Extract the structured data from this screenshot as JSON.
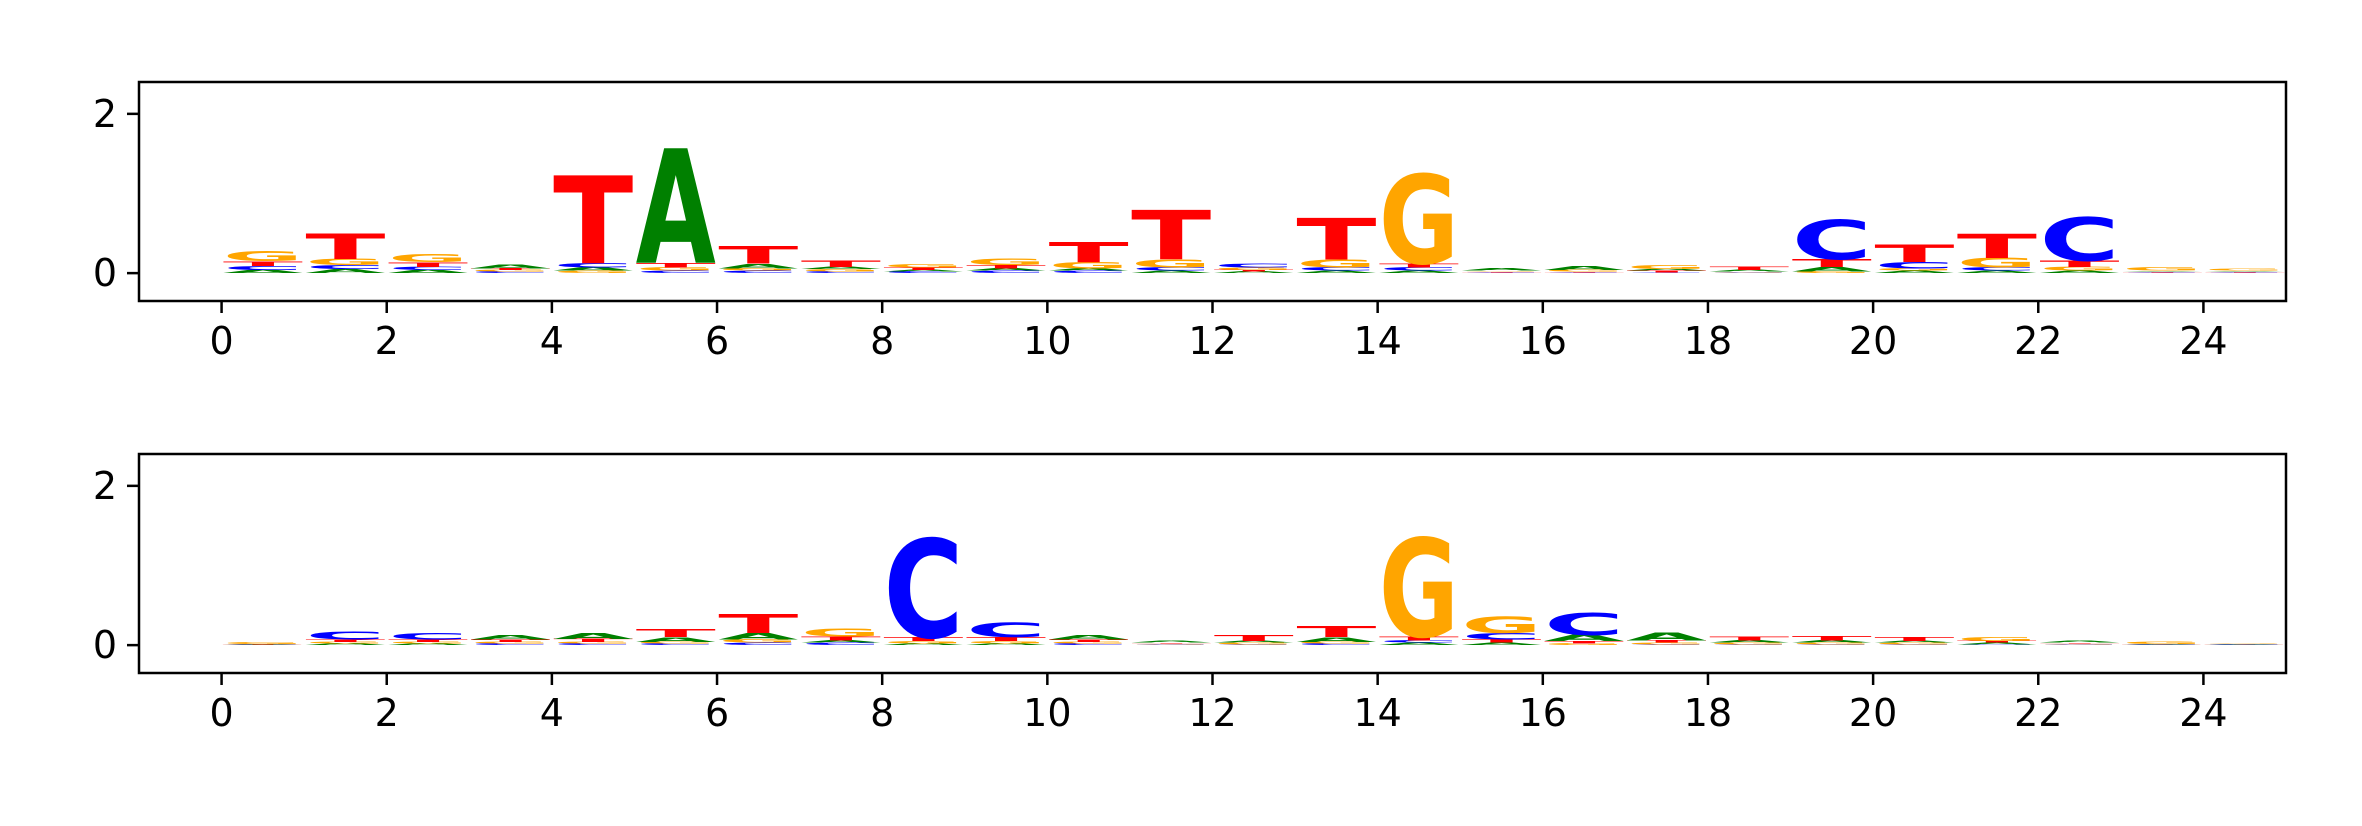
{
  "colors": {
    "A": "#008000",
    "C": "#0000ff",
    "G": "#ffa500",
    "T": "#ff0000",
    "axis": "#000000"
  },
  "chart_data": [
    {
      "type": "sequence-logo",
      "title": "",
      "xlabel": "",
      "ylabel": "",
      "xlim": [
        -1,
        25
      ],
      "ylim": [
        -0.35,
        2.4
      ],
      "xticks": [
        0,
        2,
        4,
        6,
        8,
        10,
        12,
        14,
        16,
        18,
        20,
        22,
        24
      ],
      "yticks": [
        0,
        2
      ],
      "letters": [
        {
          "pos": 0,
          "stack": [
            [
              "A",
              0.04
            ],
            [
              "C",
              0.05
            ],
            [
              "T",
              0.06
            ],
            [
              "G",
              0.12
            ]
          ]
        },
        {
          "pos": 1,
          "stack": [
            [
              "A",
              0.05
            ],
            [
              "C",
              0.05
            ],
            [
              "G",
              0.08
            ],
            [
              "T",
              0.32
            ]
          ]
        },
        {
          "pos": 2,
          "stack": [
            [
              "A",
              0.04
            ],
            [
              "C",
              0.04
            ],
            [
              "T",
              0.06
            ],
            [
              "G",
              0.1
            ]
          ]
        },
        {
          "pos": 3,
          "stack": [
            [
              "C",
              0.02
            ],
            [
              "G",
              0.02
            ],
            [
              "T",
              0.02
            ],
            [
              "A",
              0.05
            ]
          ]
        },
        {
          "pos": 4,
          "stack": [
            [
              "G",
              0.03
            ],
            [
              "A",
              0.04
            ],
            [
              "C",
              0.06
            ],
            [
              "T",
              1.1
            ]
          ]
        },
        {
          "pos": 5,
          "stack": [
            [
              "C",
              0.03
            ],
            [
              "G",
              0.04
            ],
            [
              "T",
              0.06
            ],
            [
              "A",
              1.44
            ]
          ]
        },
        {
          "pos": 6,
          "stack": [
            [
              "C",
              0.03
            ],
            [
              "G",
              0.03
            ],
            [
              "A",
              0.06
            ],
            [
              "T",
              0.22
            ]
          ]
        },
        {
          "pos": 7,
          "stack": [
            [
              "C",
              0.02
            ],
            [
              "G",
              0.03
            ],
            [
              "A",
              0.03
            ],
            [
              "T",
              0.08
            ]
          ]
        },
        {
          "pos": 8,
          "stack": [
            [
              "C",
              0.02
            ],
            [
              "A",
              0.02
            ],
            [
              "T",
              0.03
            ],
            [
              "G",
              0.04
            ]
          ]
        },
        {
          "pos": 9,
          "stack": [
            [
              "C",
              0.03
            ],
            [
              "A",
              0.03
            ],
            [
              "T",
              0.04
            ],
            [
              "G",
              0.08
            ]
          ]
        },
        {
          "pos": 10,
          "stack": [
            [
              "C",
              0.03
            ],
            [
              "A",
              0.03
            ],
            [
              "G",
              0.08
            ],
            [
              "T",
              0.25
            ]
          ]
        },
        {
          "pos": 11,
          "stack": [
            [
              "A",
              0.03
            ],
            [
              "C",
              0.04
            ],
            [
              "G",
              0.1
            ],
            [
              "T",
              0.62
            ]
          ]
        },
        {
          "pos": 12,
          "stack": [
            [
              "A",
              0.02
            ],
            [
              "T",
              0.02
            ],
            [
              "G",
              0.03
            ],
            [
              "C",
              0.05
            ]
          ]
        },
        {
          "pos": 13,
          "stack": [
            [
              "A",
              0.03
            ],
            [
              "C",
              0.04
            ],
            [
              "G",
              0.1
            ],
            [
              "T",
              0.52
            ]
          ]
        },
        {
          "pos": 14,
          "stack": [
            [
              "A",
              0.03
            ],
            [
              "C",
              0.04
            ],
            [
              "T",
              0.05
            ],
            [
              "G",
              1.12
            ]
          ]
        },
        {
          "pos": 15,
          "stack": [
            [
              "C",
              0.01
            ],
            [
              "T",
              0.01
            ],
            [
              "G",
              0.01
            ],
            [
              "A",
              0.03
            ]
          ]
        },
        {
          "pos": 16,
          "stack": [
            [
              "C",
              0.01
            ],
            [
              "T",
              0.01
            ],
            [
              "G",
              0.02
            ],
            [
              "A",
              0.05
            ]
          ]
        },
        {
          "pos": 17,
          "stack": [
            [
              "C",
              0.01
            ],
            [
              "T",
              0.02
            ],
            [
              "A",
              0.02
            ],
            [
              "G",
              0.05
            ]
          ]
        },
        {
          "pos": 18,
          "stack": [
            [
              "C",
              0.01
            ],
            [
              "G",
              0.01
            ],
            [
              "A",
              0.02
            ],
            [
              "T",
              0.04
            ]
          ]
        },
        {
          "pos": 19,
          "stack": [
            [
              "G",
              0.02
            ],
            [
              "A",
              0.06
            ],
            [
              "T",
              0.1
            ],
            [
              "C",
              0.5
            ]
          ]
        },
        {
          "pos": 20,
          "stack": [
            [
              "A",
              0.03
            ],
            [
              "G",
              0.03
            ],
            [
              "C",
              0.08
            ],
            [
              "T",
              0.22
            ]
          ]
        },
        {
          "pos": 21,
          "stack": [
            [
              "A",
              0.03
            ],
            [
              "C",
              0.04
            ],
            [
              "G",
              0.12
            ],
            [
              "T",
              0.3
            ]
          ]
        },
        {
          "pos": 22,
          "stack": [
            [
              "A",
              0.03
            ],
            [
              "G",
              0.05
            ],
            [
              "T",
              0.08
            ],
            [
              "C",
              0.55
            ]
          ]
        },
        {
          "pos": 23,
          "stack": [
            [
              "C",
              0.01
            ],
            [
              "T",
              0.01
            ],
            [
              "A",
              0.01
            ],
            [
              "G",
              0.04
            ]
          ]
        },
        {
          "pos": 24,
          "stack": [
            [
              "C",
              0.01
            ],
            [
              "T",
              0.01
            ],
            [
              "A",
              0.01
            ],
            [
              "G",
              0.02
            ]
          ]
        }
      ]
    },
    {
      "type": "sequence-logo",
      "title": "",
      "xlabel": "",
      "ylabel": "",
      "xlim": [
        -1,
        25
      ],
      "ylim": [
        -0.35,
        2.4
      ],
      "xticks": [
        0,
        2,
        4,
        6,
        8,
        10,
        12,
        14,
        16,
        18,
        20,
        22,
        24
      ],
      "yticks": [
        0,
        2
      ],
      "letters": [
        {
          "pos": 0,
          "stack": [
            [
              "A",
              0.005
            ],
            [
              "C",
              0.005
            ],
            [
              "T",
              0.005
            ],
            [
              "G",
              0.02
            ]
          ]
        },
        {
          "pos": 1,
          "stack": [
            [
              "A",
              0.02
            ],
            [
              "G",
              0.02
            ],
            [
              "T",
              0.03
            ],
            [
              "C",
              0.1
            ]
          ]
        },
        {
          "pos": 2,
          "stack": [
            [
              "A",
              0.02
            ],
            [
              "G",
              0.02
            ],
            [
              "T",
              0.03
            ],
            [
              "C",
              0.08
            ]
          ]
        },
        {
          "pos": 3,
          "stack": [
            [
              "C",
              0.02
            ],
            [
              "G",
              0.02
            ],
            [
              "T",
              0.03
            ],
            [
              "A",
              0.06
            ]
          ]
        },
        {
          "pos": 4,
          "stack": [
            [
              "C",
              0.02
            ],
            [
              "G",
              0.02
            ],
            [
              "T",
              0.04
            ],
            [
              "A",
              0.07
            ]
          ]
        },
        {
          "pos": 5,
          "stack": [
            [
              "C",
              0.02
            ],
            [
              "G",
              0.02
            ],
            [
              "A",
              0.06
            ],
            [
              "T",
              0.1
            ]
          ]
        },
        {
          "pos": 6,
          "stack": [
            [
              "C",
              0.03
            ],
            [
              "G",
              0.04
            ],
            [
              "A",
              0.08
            ],
            [
              "T",
              0.24
            ]
          ]
        },
        {
          "pos": 7,
          "stack": [
            [
              "C",
              0.03
            ],
            [
              "A",
              0.03
            ],
            [
              "T",
              0.05
            ],
            [
              "G",
              0.1
            ]
          ]
        },
        {
          "pos": 8,
          "stack": [
            [
              "A",
              0.02
            ],
            [
              "G",
              0.03
            ],
            [
              "T",
              0.05
            ],
            [
              "C",
              1.24
            ]
          ]
        },
        {
          "pos": 9,
          "stack": [
            [
              "A",
              0.02
            ],
            [
              "G",
              0.03
            ],
            [
              "T",
              0.05
            ],
            [
              "C",
              0.18
            ]
          ]
        },
        {
          "pos": 10,
          "stack": [
            [
              "C",
              0.02
            ],
            [
              "G",
              0.02
            ],
            [
              "T",
              0.03
            ],
            [
              "A",
              0.06
            ]
          ]
        },
        {
          "pos": 11,
          "stack": [
            [
              "C",
              0.01
            ],
            [
              "G",
              0.01
            ],
            [
              "T",
              0.01
            ],
            [
              "A",
              0.02
            ]
          ]
        },
        {
          "pos": 12,
          "stack": [
            [
              "C",
              0.01
            ],
            [
              "G",
              0.02
            ],
            [
              "A",
              0.02
            ],
            [
              "T",
              0.07
            ]
          ]
        },
        {
          "pos": 13,
          "stack": [
            [
              "C",
              0.02
            ],
            [
              "G",
              0.02
            ],
            [
              "A",
              0.06
            ],
            [
              "T",
              0.14
            ]
          ]
        },
        {
          "pos": 14,
          "stack": [
            [
              "A",
              0.03
            ],
            [
              "C",
              0.03
            ],
            [
              "T",
              0.05
            ],
            [
              "G",
              1.24
            ]
          ]
        },
        {
          "pos": 15,
          "stack": [
            [
              "A",
              0.03
            ],
            [
              "T",
              0.04
            ],
            [
              "C",
              0.08
            ],
            [
              "G",
              0.2
            ]
          ]
        },
        {
          "pos": 16,
          "stack": [
            [
              "G",
              0.02
            ],
            [
              "T",
              0.03
            ],
            [
              "A",
              0.08
            ],
            [
              "C",
              0.28
            ]
          ]
        },
        {
          "pos": 17,
          "stack": [
            [
              "C",
              0.01
            ],
            [
              "G",
              0.02
            ],
            [
              "T",
              0.03
            ],
            [
              "A",
              0.1
            ]
          ]
        },
        {
          "pos": 18,
          "stack": [
            [
              "C",
              0.01
            ],
            [
              "G",
              0.02
            ],
            [
              "A",
              0.03
            ],
            [
              "T",
              0.05
            ]
          ]
        },
        {
          "pos": 19,
          "stack": [
            [
              "C",
              0.01
            ],
            [
              "G",
              0.02
            ],
            [
              "A",
              0.03
            ],
            [
              "T",
              0.06
            ]
          ]
        },
        {
          "pos": 20,
          "stack": [
            [
              "C",
              0.01
            ],
            [
              "G",
              0.02
            ],
            [
              "A",
              0.02
            ],
            [
              "T",
              0.05
            ]
          ]
        },
        {
          "pos": 21,
          "stack": [
            [
              "C",
              0.01
            ],
            [
              "A",
              0.02
            ],
            [
              "T",
              0.02
            ],
            [
              "G",
              0.05
            ]
          ]
        },
        {
          "pos": 22,
          "stack": [
            [
              "C",
              0.01
            ],
            [
              "G",
              0.01
            ],
            [
              "T",
              0.01
            ],
            [
              "A",
              0.02
            ]
          ]
        },
        {
          "pos": 23,
          "stack": [
            [
              "C",
              0.005
            ],
            [
              "T",
              0.005
            ],
            [
              "A",
              0.005
            ],
            [
              "G",
              0.03
            ]
          ]
        },
        {
          "pos": 24,
          "stack": [
            [
              "C",
              0.005
            ],
            [
              "T",
              0.005
            ],
            [
              "A",
              0.005
            ],
            [
              "G",
              0.01
            ]
          ]
        }
      ]
    }
  ]
}
